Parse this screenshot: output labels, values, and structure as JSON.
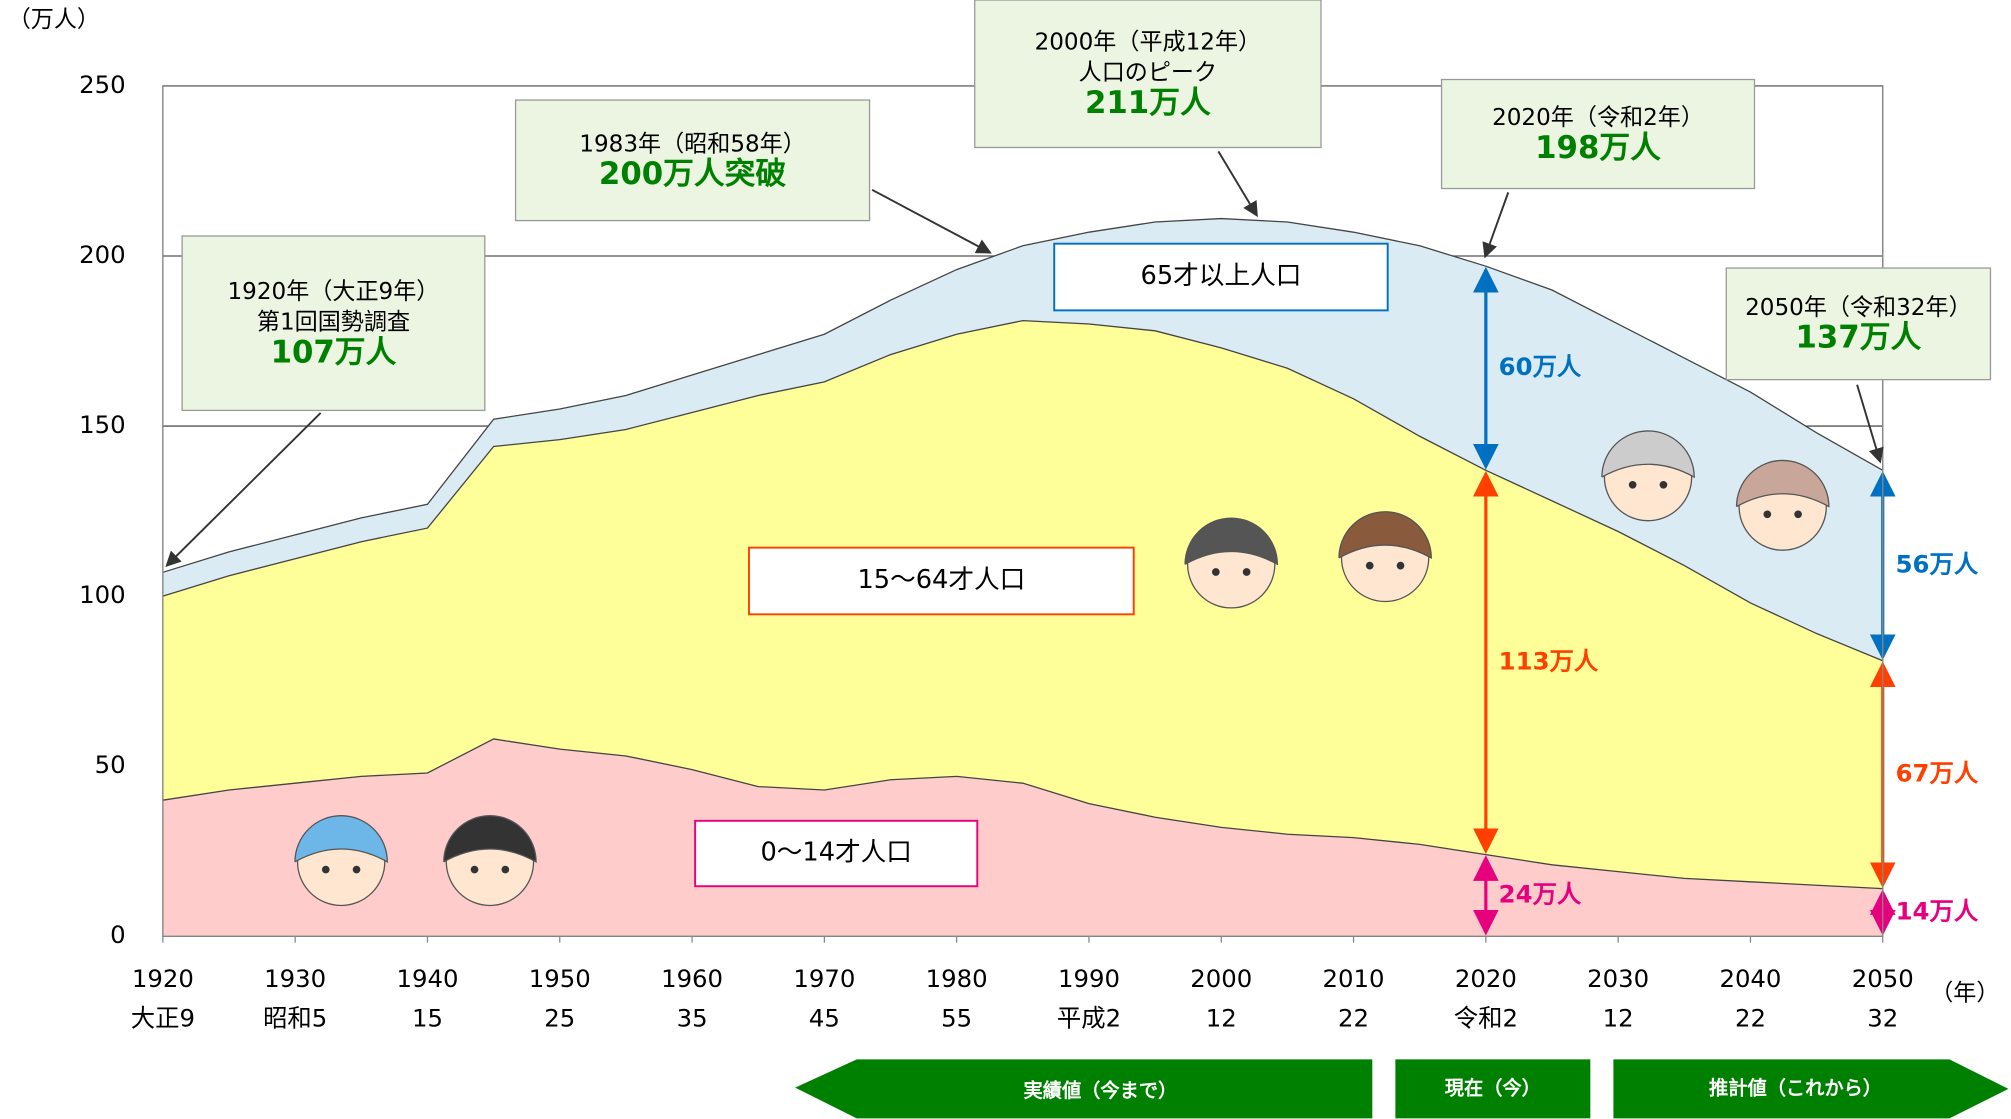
{
  "chart_data": {
    "type": "stacked_area",
    "y_unit": "（万人）",
    "x_unit": "（年）",
    "x": [
      1920,
      1925,
      1930,
      1935,
      1940,
      1945,
      1950,
      1955,
      1960,
      1965,
      1970,
      1975,
      1980,
      1985,
      1990,
      1995,
      2000,
      2005,
      2010,
      2015,
      2020,
      2025,
      2030,
      2035,
      2040,
      2045,
      2050
    ],
    "series": [
      {
        "name": "0〜14才人口",
        "color": "#ffcccc",
        "label_color": "#e6007e",
        "values": [
          40,
          43,
          45,
          47,
          48,
          58,
          55,
          53,
          49,
          44,
          43,
          46,
          47,
          45,
          39,
          35,
          32,
          30,
          29,
          27,
          24,
          21,
          19,
          17,
          16,
          15,
          14
        ],
        "value_labels": [
          null,
          null,
          null,
          null,
          null,
          null,
          null,
          null,
          null,
          null,
          null,
          null,
          null,
          null,
          null,
          null,
          null,
          null,
          null,
          null,
          "24万人",
          null,
          null,
          null,
          null,
          null,
          "14万人"
        ]
      },
      {
        "name": "15〜64才人口",
        "color": "#ffff99",
        "label_color": "#ff4000",
        "values": [
          60,
          63,
          66,
          69,
          72,
          86,
          91,
          96,
          105,
          115,
          120,
          125,
          130,
          136,
          141,
          143,
          141,
          137,
          129,
          120,
          113,
          107,
          100,
          92,
          82,
          74,
          67
        ],
        "value_labels": [
          null,
          null,
          null,
          null,
          null,
          null,
          null,
          null,
          null,
          null,
          null,
          null,
          null,
          null,
          null,
          null,
          null,
          null,
          null,
          null,
          "113万人",
          null,
          null,
          null,
          null,
          null,
          "67万人"
        ]
      },
      {
        "name": "65才以上人口",
        "color": "#daebf3",
        "label_color": "#0070c0",
        "values": [
          7,
          7,
          7,
          7,
          7,
          8,
          9,
          10,
          11,
          12,
          14,
          16,
          19,
          22,
          27,
          32,
          38,
          43,
          49,
          56,
          60,
          62,
          61,
          61,
          62,
          59,
          56
        ],
        "value_labels": [
          null,
          null,
          null,
          null,
          null,
          null,
          null,
          null,
          null,
          null,
          null,
          null,
          null,
          null,
          null,
          null,
          null,
          null,
          null,
          null,
          "60万人",
          null,
          null,
          null,
          null,
          null,
          "56万人"
        ]
      }
    ],
    "xlim": [
      1920,
      2050
    ],
    "xticks": [
      1920,
      1930,
      1940,
      1950,
      1960,
      1970,
      1980,
      1990,
      2000,
      2010,
      2020,
      2030,
      2040,
      2050
    ],
    "xtick_sublabels": [
      "大正9",
      "昭和5",
      "15",
      "25",
      "35",
      "45",
      "55",
      "平成2",
      "12",
      "22",
      "令和2",
      "12",
      "22",
      "32"
    ],
    "ylim": [
      0,
      250
    ],
    "yticks": [
      0,
      50,
      100,
      150,
      200,
      250
    ],
    "grid": true,
    "annotations": [
      {
        "lines": [
          "1920年（大正9年）",
          "第1回国勢調査",
          "107万人"
        ]
      },
      {
        "lines": [
          "1983年（昭和58年）",
          "200万人突破"
        ]
      },
      {
        "lines": [
          "2000年（平成12年）",
          "人口のピーク",
          "211万人"
        ]
      },
      {
        "lines": [
          "2020年（令和2年）",
          "198万人"
        ]
      },
      {
        "lines": [
          "2050年（令和32年）",
          "137万人"
        ]
      }
    ]
  },
  "bottom_bar": {
    "items": [
      "実績値（今まで）",
      "現在（今）",
      "推計値（これから）"
    ]
  }
}
